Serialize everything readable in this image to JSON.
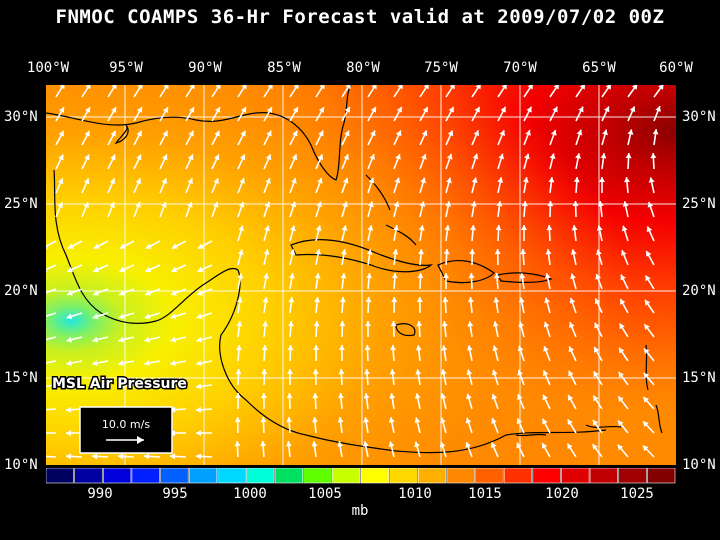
{
  "title": "FNMOC COAMPS 36-Hr Forecast valid at 2009/07/02 00Z",
  "lon_labels": [
    "100°W",
    "95°W",
    "90°W",
    "85°W",
    "80°W",
    "75°W",
    "70°W",
    "65°W",
    "60°W"
  ],
  "lat_labels": [
    "30°N",
    "25°N",
    "20°N",
    "15°N",
    "10°N"
  ],
  "field_label": "MSL Air Pressure",
  "vector_ref_label": "10.0 m/s",
  "colorbar": {
    "tick_labels": [
      "990",
      "995",
      "1000",
      "1005",
      "1010",
      "1015",
      "1020",
      "1025"
    ],
    "units": "mb",
    "colors": [
      "#000060",
      "#0000a0",
      "#0000dc",
      "#0020ff",
      "#0060ff",
      "#00a0ff",
      "#00d8ff",
      "#00ffd8",
      "#00e060",
      "#60ff00",
      "#c8ff00",
      "#ffff00",
      "#ffd800",
      "#ffb000",
      "#ff8800",
      "#ff6000",
      "#ff3000",
      "#ff0000",
      "#e00000",
      "#c00000",
      "#a00000",
      "#800000"
    ]
  },
  "colors": {
    "pressure_low": "#20e8e0",
    "pressure_high": "#9a0000",
    "land_outline": "#000000",
    "vectors": "#ffffff"
  }
}
